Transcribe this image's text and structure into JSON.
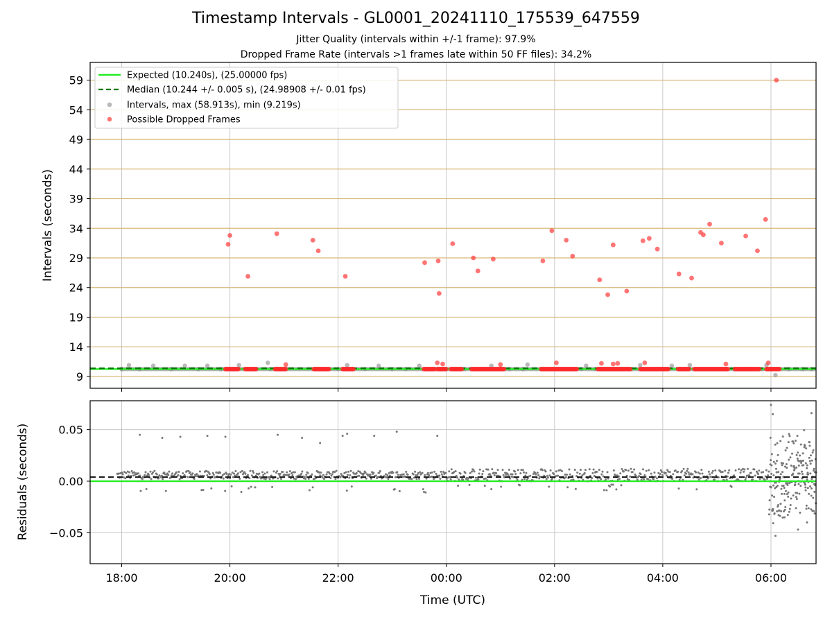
{
  "chart": {
    "title": "Timestamp Intervals - GL0001_20241110_175539_647559",
    "subtitle_1": "Jitter Quality (intervals within +/-1 frame): 97.9%",
    "subtitle_2": "Dropped Frame Rate (intervals >1 frames late within 50 FF files): 34.2%",
    "xlabel": "Time (UTC)"
  },
  "colors": {
    "expected": "#22ee22",
    "median": "#007700",
    "intervals": "#8a8a8a",
    "dropped": "#ff2a2a",
    "hgrid_top": "#d8b878",
    "grid": "#c8c8c8"
  },
  "chart_data": [
    {
      "type": "scatter",
      "ylabel": "Intervals (seconds)",
      "xlim": [
        "17:25",
        "06:50"
      ],
      "ylim": [
        7,
        62
      ],
      "xticks": [
        "18:00",
        "20:00",
        "22:00",
        "00:00",
        "02:00",
        "04:00",
        "06:00"
      ],
      "yticks": [
        9,
        14,
        19,
        24,
        29,
        34,
        39,
        44,
        49,
        54,
        59
      ],
      "grid": true,
      "legend_position": "upper-left",
      "legend": [
        "Expected (10.240s), (25.00000 fps)",
        "Median (10.244 +/- 0.005 s), (24.98908 +/- 0.01 fps)",
        "Intervals, max (58.913s), min (9.219s)",
        "Possible Dropped Frames"
      ],
      "series": [
        {
          "name": "Expected (10.240s), (25.00000 fps)",
          "kind": "hline",
          "y": 10.24
        },
        {
          "name": "Median (10.244 +/- 0.005 s), (24.98908 +/- 0.01 fps)",
          "kind": "hline-dashed",
          "y": 10.244
        },
        {
          "name": "Intervals, max (58.913s), min (9.219s)",
          "kind": "points",
          "points": [
            [
              "18:00",
              10.24
            ],
            [
              "18:08",
              10.9
            ],
            [
              "18:20",
              10.24
            ],
            [
              "18:35",
              10.8
            ],
            [
              "18:55",
              10.24
            ],
            [
              "19:10",
              10.8
            ],
            [
              "19:25",
              10.24
            ],
            [
              "19:35",
              10.8
            ],
            [
              "19:50",
              10.24
            ],
            [
              "20:05",
              10.24
            ],
            [
              "20:10",
              10.9
            ],
            [
              "20:45",
              10.24
            ],
            [
              "20:42",
              11.3
            ],
            [
              "21:00",
              10.24
            ],
            [
              "21:35",
              10.24
            ],
            [
              "21:45",
              10.24
            ],
            [
              "22:00",
              10.24
            ],
            [
              "22:10",
              10.9
            ],
            [
              "22:30",
              10.24
            ],
            [
              "22:45",
              10.8
            ],
            [
              "23:00",
              10.24
            ],
            [
              "23:15",
              10.24
            ],
            [
              "23:30",
              10.8
            ],
            [
              "23:45",
              10.24
            ],
            [
              "00:00",
              10.24
            ],
            [
              "00:20",
              10.24
            ],
            [
              "00:40",
              10.24
            ],
            [
              "00:50",
              10.8
            ],
            [
              "01:10",
              10.24
            ],
            [
              "01:25",
              10.24
            ],
            [
              "01:30",
              11.0
            ],
            [
              "01:45",
              10.24
            ],
            [
              "02:30",
              10.24
            ],
            [
              "02:35",
              10.8
            ],
            [
              "02:45",
              10.24
            ],
            [
              "03:25",
              10.24
            ],
            [
              "03:35",
              10.9
            ],
            [
              "04:00",
              10.24
            ],
            [
              "04:10",
              10.8
            ],
            [
              "04:20",
              10.24
            ],
            [
              "04:30",
              10.9
            ],
            [
              "05:10",
              10.24
            ],
            [
              "05:20",
              10.24
            ],
            [
              "05:50",
              10.24
            ],
            [
              "05:55",
              10.9
            ],
            [
              "06:05",
              9.22
            ],
            [
              "06:20",
              10.24
            ],
            [
              "06:35",
              10.24
            ],
            [
              "06:45",
              10.24
            ]
          ]
        },
        {
          "name": "Possible Dropped Frames",
          "kind": "points",
          "points": [
            [
              "19:58",
              31.3
            ],
            [
              "20:00",
              32.8
            ],
            [
              "20:20",
              25.9
            ],
            [
              "20:52",
              33.1
            ],
            [
              "21:02",
              11.0
            ],
            [
              "21:32",
              32.0
            ],
            [
              "21:38",
              30.2
            ],
            [
              "22:08",
              25.9
            ],
            [
              "23:36",
              28.2
            ],
            [
              "23:51",
              28.5
            ],
            [
              "23:52",
              23.0
            ],
            [
              "23:50",
              11.3
            ],
            [
              "23:56",
              11.1
            ],
            [
              "00:07",
              31.4
            ],
            [
              "00:30",
              29.0
            ],
            [
              "00:35",
              26.8
            ],
            [
              "00:52",
              28.8
            ],
            [
              "01:00",
              11.0
            ],
            [
              "01:47",
              28.5
            ],
            [
              "01:57",
              33.6
            ],
            [
              "02:02",
              11.3
            ],
            [
              "02:13",
              32.0
            ],
            [
              "02:20",
              29.3
            ],
            [
              "02:50",
              25.3
            ],
            [
              "02:52",
              11.2
            ],
            [
              "02:59",
              22.8
            ],
            [
              "03:05",
              31.2
            ],
            [
              "03:05",
              11.1
            ],
            [
              "03:10",
              11.2
            ],
            [
              "03:20",
              23.4
            ],
            [
              "03:38",
              31.9
            ],
            [
              "03:40",
              11.3
            ],
            [
              "03:45",
              32.3
            ],
            [
              "03:54",
              30.5
            ],
            [
              "04:18",
              26.3
            ],
            [
              "04:32",
              25.6
            ],
            [
              "04:42",
              33.3
            ],
            [
              "04:45",
              32.9
            ],
            [
              "04:52",
              34.7
            ],
            [
              "05:05",
              31.5
            ],
            [
              "05:10",
              11.1
            ],
            [
              "05:32",
              32.7
            ],
            [
              "05:45",
              30.2
            ],
            [
              "05:54",
              35.5
            ],
            [
              "05:57",
              11.3
            ],
            [
              "06:06",
              59.0
            ]
          ]
        },
        {
          "name": "Possible Dropped Frames (baseline clusters)",
          "kind": "spans",
          "y": 10.24,
          "spans": [
            [
              "19:55",
              "20:10"
            ],
            [
              "20:17",
              "20:30"
            ],
            [
              "20:50",
              "21:03"
            ],
            [
              "21:33",
              "21:50"
            ],
            [
              "22:05",
              "22:18"
            ],
            [
              "23:35",
              "23:48"
            ],
            [
              "23:50",
              "00:00"
            ],
            [
              "00:05",
              "00:18"
            ],
            [
              "00:28",
              "00:58"
            ],
            [
              "00:58",
              "01:05"
            ],
            [
              "01:45",
              "02:25"
            ],
            [
              "02:48",
              "03:25"
            ],
            [
              "03:35",
              "04:07"
            ],
            [
              "04:17",
              "04:30"
            ],
            [
              "04:35",
              "05:13"
            ],
            [
              "05:20",
              "05:35"
            ],
            [
              "05:35",
              "05:48"
            ],
            [
              "05:55",
              "06:10"
            ]
          ]
        }
      ]
    },
    {
      "type": "scatter",
      "ylabel": "Residuals (seconds)",
      "xlabel": "Time (UTC)",
      "xlim": [
        "17:25",
        "06:50"
      ],
      "ylim": [
        -0.08,
        0.078
      ],
      "xticks": [
        "18:00",
        "20:00",
        "22:00",
        "00:00",
        "02:00",
        "04:00",
        "06:00"
      ],
      "yticks": [
        0.05,
        0.0,
        -0.05
      ],
      "ytick_labels": [
        "0.05",
        "0.00",
        "−0.05"
      ],
      "grid": true,
      "series": [
        {
          "name": "Expected (10.240s), (25.00000 fps)",
          "kind": "hline",
          "y": 0.0
        },
        {
          "name": "Median (10.244 +/- 0.005 s), (24.98908 +/- 0.01 fps)",
          "kind": "hline-dashed",
          "y": 0.004
        },
        {
          "name": "Residual outliers",
          "kind": "points",
          "points": [
            [
              "18:20",
              0.045
            ],
            [
              "18:45",
              0.042
            ],
            [
              "19:05",
              0.043
            ],
            [
              "19:35",
              0.044
            ],
            [
              "19:55",
              0.043
            ],
            [
              "20:53",
              0.045
            ],
            [
              "21:20",
              0.042
            ],
            [
              "21:40",
              0.037
            ],
            [
              "22:05",
              0.044
            ],
            [
              "22:10",
              0.046
            ],
            [
              "22:40",
              0.044
            ],
            [
              "23:05",
              0.048
            ],
            [
              "23:50",
              0.044
            ],
            [
              "06:00",
              0.074
            ],
            [
              "06:02",
              0.065
            ],
            [
              "06:45",
              0.066
            ],
            [
              "06:05",
              -0.053
            ],
            [
              "06:30",
              -0.047
            ],
            [
              "06:15",
              -0.035
            ],
            [
              "06:40",
              -0.04
            ]
          ]
        },
        {
          "name": "Residual clusters",
          "kind": "bands",
          "bands": [
            {
              "start": "17:55",
              "end": "23:55",
              "center": 0.006,
              "spread": 0.004,
              "outlier": -0.008
            },
            {
              "start": "23:55",
              "end": "05:45",
              "center": 0.006,
              "spread": 0.006,
              "outlier": -0.006
            },
            {
              "start": "05:45",
              "end": "05:58",
              "center": 0.006,
              "spread": 0.005,
              "outlier": -0.006
            },
            {
              "start": "05:58",
              "end": "06:50",
              "center": 0.004,
              "spread": 0.035,
              "outlier": -0.03
            }
          ]
        }
      ]
    }
  ]
}
